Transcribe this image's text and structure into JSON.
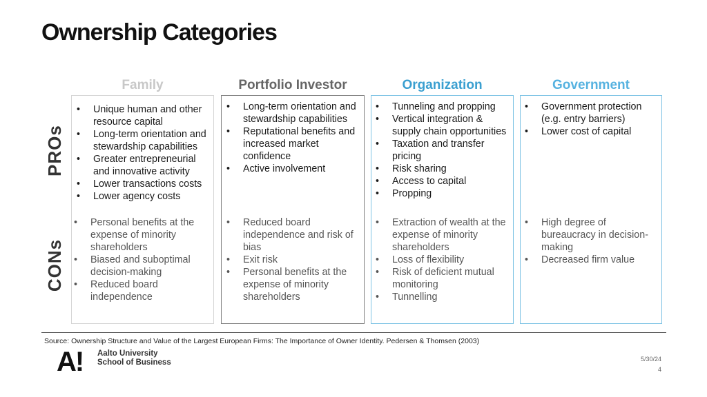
{
  "title": "Ownership Categories",
  "rows": {
    "pros": "PROs",
    "cons": "CONs"
  },
  "colors": {
    "family": "#c8c8c8",
    "portfolio": "#666666",
    "organization": "#3a9fd0",
    "government": "#56b2e0",
    "box_border_gray": "#bdbdbd",
    "box_border_dark": "#7f7f7f",
    "box_border_blue": "#7cc2e4"
  },
  "columns": [
    {
      "header": "Family",
      "pros": [
        "Unique human and other resource capital",
        "Long-term orientation and stewardship capabilities",
        "Greater entrepreneurial and innovative activity",
        "Lower transactions costs",
        "Lower agency costs"
      ],
      "cons": [
        "Personal benefits at the expense of minority shareholders",
        "Biased and suboptimal decision-making",
        "Reduced board independence"
      ]
    },
    {
      "header": "Portfolio Investor",
      "pros": [
        "Long-term orientation and stewardship capabilities",
        "Reputational benefits and increased market confidence",
        "Active involvement"
      ],
      "cons": [
        "Reduced board independence and risk of bias",
        "Exit risk",
        "Personal benefits at the expense of minority shareholders"
      ]
    },
    {
      "header": "Organization",
      "pros": [
        "Tunneling and propping",
        "Vertical integration & supply chain opportunities",
        "Taxation and transfer pricing",
        "Risk sharing",
        "Access to capital",
        "Propping"
      ],
      "cons": [
        "Extraction of wealth at the expense of minority shareholders",
        "Loss of flexibility",
        "Risk of deficient mutual monitoring",
        "Tunnelling"
      ]
    },
    {
      "header": "Government",
      "pros": [
        "Government protection (e.g. entry barriers)",
        "Lower cost of capital"
      ],
      "cons": [
        "High degree of bureaucracy in decision-making",
        "Decreased firm value"
      ]
    }
  ],
  "source": "Source: Ownership Structure and Value of the Largest European Firms: The Importance of Owner Identity. Pedersen & Thomsen (2003)",
  "logo": {
    "mark": "A!",
    "line1": "Aalto University",
    "line2": "School of Business"
  },
  "date": "5/30/24",
  "page_number": "4"
}
